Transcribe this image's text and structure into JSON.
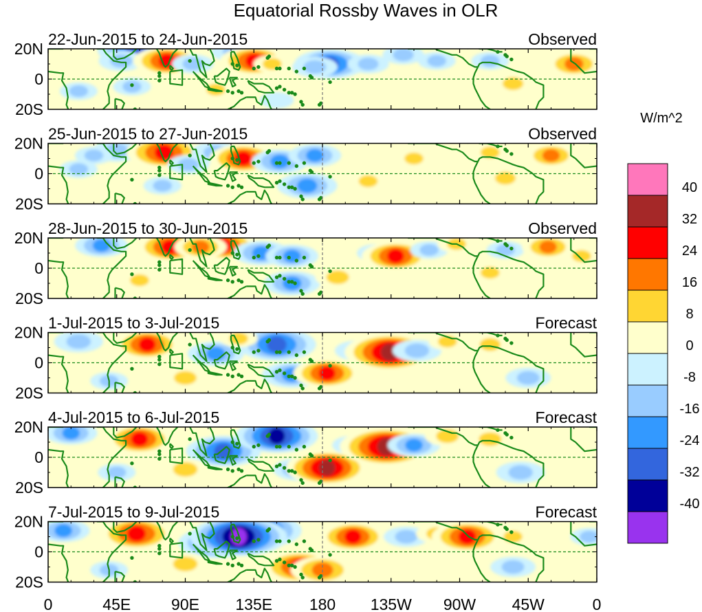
{
  "title": "Equatorial Rossby Waves in OLR",
  "colorbar": {
    "unit": "W/m^2",
    "tick_labels": [
      "40",
      "32",
      "24",
      "16",
      "8",
      "0",
      "-8",
      "-16",
      "-24",
      "-32",
      "-40"
    ],
    "colors_top_to_bottom": [
      "#ff77bb",
      "#a52828",
      "#ff0000",
      "#ff7700",
      "#ffd633",
      "#ffffcc",
      "#ccf2ff",
      "#99ccff",
      "#3399ff",
      "#3366dd",
      "#000099",
      "#9933ee"
    ]
  },
  "x_axis": {
    "tick_labels": [
      "0",
      "45E",
      "90E",
      "135E",
      "180",
      "135W",
      "90W",
      "45W",
      "0"
    ],
    "tick_longitudes_deg": [
      0,
      45,
      90,
      135,
      180,
      225,
      270,
      315,
      360
    ]
  },
  "y_axis": {
    "tick_labels": [
      "20N",
      "0",
      "20S"
    ],
    "tick_latitudes_deg": [
      20,
      0,
      -20
    ]
  },
  "panels": [
    {
      "date_range": "22-Jun-2015 to 24-Jun-2015",
      "kind": "Observed",
      "anomalies": [
        {
          "lon": 57,
          "lat": 19,
          "value": -30
        },
        {
          "lon": 48,
          "lat": 12,
          "value": -14
        },
        {
          "lon": 78,
          "lat": 12,
          "value": 26
        },
        {
          "lon": 95,
          "lat": 10,
          "value": -12
        },
        {
          "lon": 122,
          "lat": 18,
          "value": -14
        },
        {
          "lon": 135,
          "lat": 12,
          "value": 26
        },
        {
          "lon": 147,
          "lat": 10,
          "value": 10
        },
        {
          "lon": 185,
          "lat": 10,
          "value": -28
        },
        {
          "lon": 175,
          "lat": 8,
          "value": -14
        },
        {
          "lon": 233,
          "lat": 16,
          "value": -12
        },
        {
          "lon": 210,
          "lat": 10,
          "value": -12
        },
        {
          "lon": 255,
          "lat": 12,
          "value": -10
        },
        {
          "lon": 290,
          "lat": 12,
          "value": -10
        },
        {
          "lon": 345,
          "lat": 10,
          "value": 20
        },
        {
          "lon": 110,
          "lat": -7,
          "value": 10
        },
        {
          "lon": 55,
          "lat": -5,
          "value": -10
        },
        {
          "lon": 305,
          "lat": -3,
          "value": 12
        },
        {
          "lon": 150,
          "lat": -14,
          "value": -8
        },
        {
          "lon": 20,
          "lat": -8,
          "value": -10
        }
      ]
    },
    {
      "date_range": "25-Jun-2015 to 27-Jun-2015",
      "kind": "Observed",
      "anomalies": [
        {
          "lon": 45,
          "lat": 15,
          "value": -16
        },
        {
          "lon": 30,
          "lat": 12,
          "value": -10
        },
        {
          "lon": 76,
          "lat": 14,
          "value": 30
        },
        {
          "lon": 92,
          "lat": 6,
          "value": -12
        },
        {
          "lon": 110,
          "lat": 14,
          "value": -16
        },
        {
          "lon": 128,
          "lat": 10,
          "value": 26
        },
        {
          "lon": 152,
          "lat": 8,
          "value": -20
        },
        {
          "lon": 175,
          "lat": 12,
          "value": -18
        },
        {
          "lon": 170,
          "lat": -8,
          "value": -22
        },
        {
          "lon": 210,
          "lat": -5,
          "value": 10
        },
        {
          "lon": 240,
          "lat": 10,
          "value": 10
        },
        {
          "lon": 290,
          "lat": 14,
          "value": 10
        },
        {
          "lon": 330,
          "lat": 12,
          "value": 18
        },
        {
          "lon": 75,
          "lat": -8,
          "value": -10
        },
        {
          "lon": 300,
          "lat": -3,
          "value": 12
        },
        {
          "lon": 20,
          "lat": 3,
          "value": -10
        }
      ]
    },
    {
      "date_range": "28-Jun-2015 to 30-Jun-2015",
      "kind": "Observed",
      "anomalies": [
        {
          "lon": 35,
          "lat": 15,
          "value": -18
        },
        {
          "lon": 80,
          "lat": 14,
          "value": 26
        },
        {
          "lon": 115,
          "lat": 15,
          "value": 26
        },
        {
          "lon": 100,
          "lat": 14,
          "value": 18
        },
        {
          "lon": 140,
          "lat": 10,
          "value": -20
        },
        {
          "lon": 160,
          "lat": 8,
          "value": -18
        },
        {
          "lon": 160,
          "lat": -10,
          "value": -20
        },
        {
          "lon": 190,
          "lat": -6,
          "value": 14
        },
        {
          "lon": 215,
          "lat": 10,
          "value": -10
        },
        {
          "lon": 228,
          "lat": 8,
          "value": 26
        },
        {
          "lon": 250,
          "lat": 12,
          "value": -10
        },
        {
          "lon": 268,
          "lat": 16,
          "value": 10
        },
        {
          "lon": 300,
          "lat": 12,
          "value": -10
        },
        {
          "lon": 328,
          "lat": 14,
          "value": 18
        },
        {
          "lon": 350,
          "lat": 8,
          "value": 10
        },
        {
          "lon": 60,
          "lat": -8,
          "value": 10
        },
        {
          "lon": 290,
          "lat": -3,
          "value": 10
        }
      ]
    },
    {
      "date_range": "1-Jul-2015 to 3-Jul-2015",
      "kind": "Forecast",
      "anomalies": [
        {
          "lon": 20,
          "lat": 14,
          "value": -16
        },
        {
          "lon": 65,
          "lat": 12,
          "value": 26
        },
        {
          "lon": 110,
          "lat": 6,
          "value": -20
        },
        {
          "lon": 150,
          "lat": 12,
          "value": -32
        },
        {
          "lon": 125,
          "lat": 16,
          "value": 10
        },
        {
          "lon": 160,
          "lat": -8,
          "value": -22
        },
        {
          "lon": 183,
          "lat": -7,
          "value": 26
        },
        {
          "lon": 203,
          "lat": 8,
          "value": -14
        },
        {
          "lon": 224,
          "lat": 7,
          "value": 38
        },
        {
          "lon": 242,
          "lat": 8,
          "value": -16
        },
        {
          "lon": 262,
          "lat": 14,
          "value": 10
        },
        {
          "lon": 290,
          "lat": 12,
          "value": 12
        },
        {
          "lon": 315,
          "lat": -10,
          "value": -14
        },
        {
          "lon": 90,
          "lat": -10,
          "value": 14
        },
        {
          "lon": 340,
          "lat": 10,
          "value": 8
        },
        {
          "lon": 40,
          "lat": -12,
          "value": -10
        }
      ]
    },
    {
      "date_range": "4-Jul-2015 to 6-Jul-2015",
      "kind": "Forecast",
      "anomalies": [
        {
          "lon": 15,
          "lat": 16,
          "value": -18
        },
        {
          "lon": 60,
          "lat": 12,
          "value": 26
        },
        {
          "lon": 115,
          "lat": 4,
          "value": -30
        },
        {
          "lon": 150,
          "lat": 14,
          "value": -34
        },
        {
          "lon": 165,
          "lat": -8,
          "value": -18
        },
        {
          "lon": 183,
          "lat": -7,
          "value": 34
        },
        {
          "lon": 200,
          "lat": 8,
          "value": -12
        },
        {
          "lon": 222,
          "lat": 7,
          "value": 40
        },
        {
          "lon": 240,
          "lat": 8,
          "value": -18
        },
        {
          "lon": 262,
          "lat": 14,
          "value": 14
        },
        {
          "lon": 290,
          "lat": 12,
          "value": 14
        },
        {
          "lon": 310,
          "lat": -10,
          "value": -16
        },
        {
          "lon": 90,
          "lat": -8,
          "value": 16
        },
        {
          "lon": 330,
          "lat": 8,
          "value": 8
        },
        {
          "lon": 45,
          "lat": -10,
          "value": -10
        }
      ]
    },
    {
      "date_range": "7-Jul-2015 to 9-Jul-2015",
      "kind": "Forecast",
      "anomalies": [
        {
          "lon": 10,
          "lat": 14,
          "value": -18
        },
        {
          "lon": 58,
          "lat": 12,
          "value": 30
        },
        {
          "lon": 110,
          "lat": 6,
          "value": -30
        },
        {
          "lon": 138,
          "lat": 14,
          "value": -36
        },
        {
          "lon": 125,
          "lat": 10,
          "value": -42
        },
        {
          "lon": 165,
          "lat": -10,
          "value": 30
        },
        {
          "lon": 180,
          "lat": -12,
          "value": 24
        },
        {
          "lon": 200,
          "lat": 10,
          "value": 26
        },
        {
          "lon": 235,
          "lat": 10,
          "value": -14
        },
        {
          "lon": 255,
          "lat": 12,
          "value": 12
        },
        {
          "lon": 275,
          "lat": 10,
          "value": 28
        },
        {
          "lon": 305,
          "lat": 10,
          "value": 10
        },
        {
          "lon": 305,
          "lat": -10,
          "value": -14
        },
        {
          "lon": 90,
          "lat": -8,
          "value": 16
        },
        {
          "lon": 225,
          "lat": -5,
          "value": 8
        },
        {
          "lon": 40,
          "lat": -12,
          "value": -10
        },
        {
          "lon": 355,
          "lat": 10,
          "value": -10
        }
      ]
    }
  ]
}
